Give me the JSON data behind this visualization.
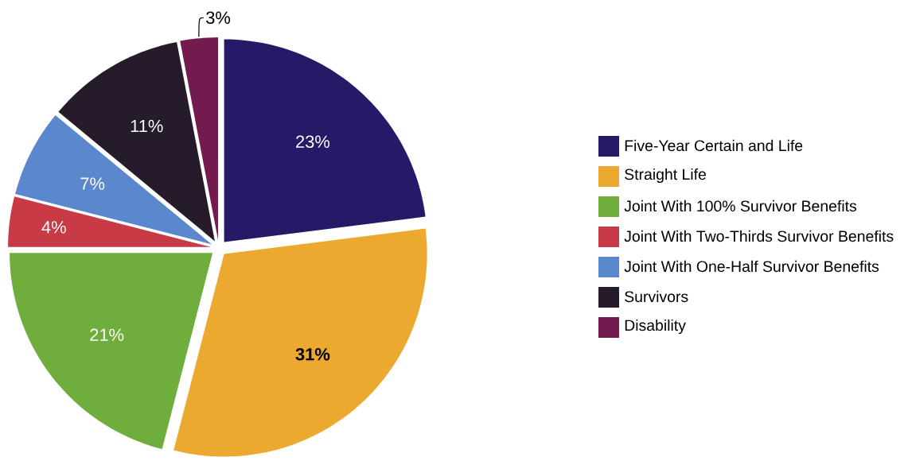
{
  "chart_data": {
    "type": "pie",
    "categories": [
      "Five-Year Certain and Life",
      "Straight Life",
      "Joint With 100% Survivor Benefits",
      "Joint With Two-Thirds Survivor Benefits",
      "Joint With One-Half Survivor Benefits",
      "Survivors",
      "Disability"
    ],
    "values": [
      23,
      31,
      21,
      4,
      7,
      11,
      3
    ],
    "value_labels": [
      "23%",
      "31%",
      "21%",
      "4%",
      "7%",
      "11%",
      "3%"
    ],
    "colors": [
      "#261a68",
      "#eba92f",
      "#6fae3c",
      "#c83a45",
      "#5b87cc",
      "#261b2b",
      "#731b4f"
    ],
    "legend": "right"
  }
}
